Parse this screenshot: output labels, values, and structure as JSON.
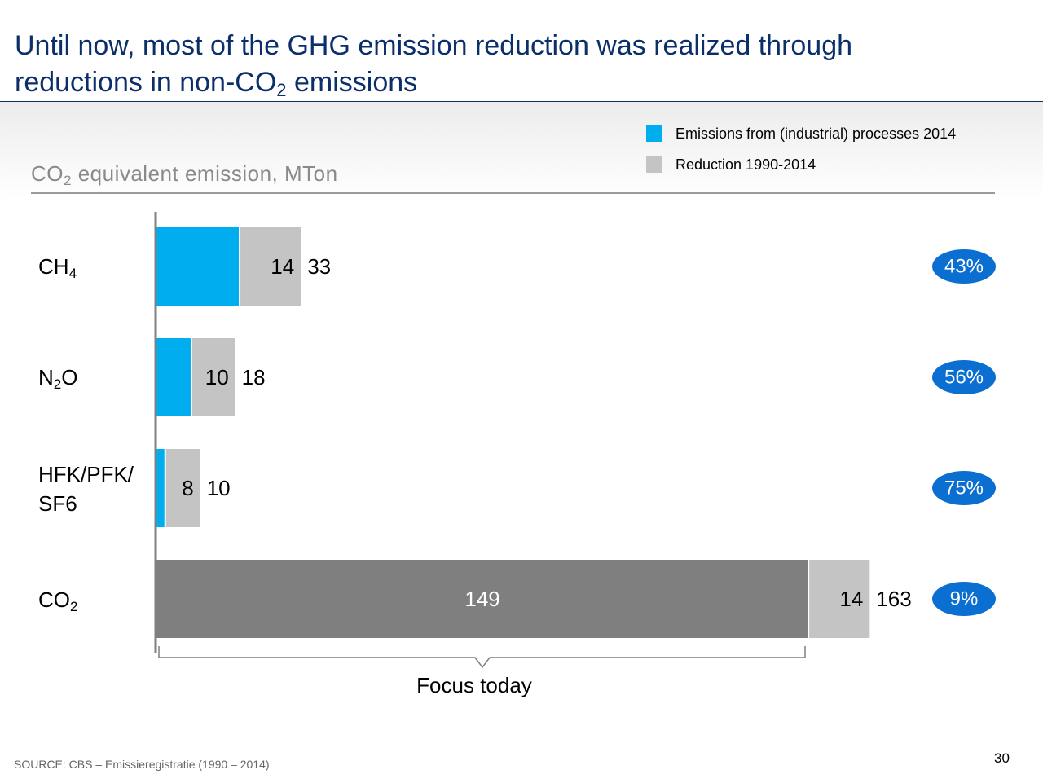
{
  "title": {
    "line1": "Until now, most of the GHG emission reduction was realized through",
    "line2_pre": "reductions in non-CO",
    "line2_sub": "2",
    "line2_post": " emissions"
  },
  "unit_label": {
    "pre": "CO",
    "sub": "2",
    "post": " equivalent emission, MTon"
  },
  "legend": [
    {
      "label": "Emissions from (industrial) processes 2014",
      "color": "#00aeef"
    },
    {
      "label": "Reduction 1990-2014",
      "color": "#c4c4c4"
    }
  ],
  "rows": [
    {
      "label_main": "CH",
      "label_sub": "4",
      "label_post": "",
      "label_line2": ""
    },
    {
      "label_main": "N",
      "label_sub": "2",
      "label_post": "O",
      "label_line2": ""
    },
    {
      "label_main": "HFK/PFK/",
      "label_sub": "",
      "label_post": "",
      "label_line2": "SF6"
    },
    {
      "label_main": "CO",
      "label_sub": "2",
      "label_post": "",
      "label_line2": ""
    }
  ],
  "chart_data": {
    "type": "bar",
    "orientation": "horizontal",
    "stacked": true,
    "categories": [
      "CH4",
      "N2O",
      "HFK/PFK/SF6",
      "CO2"
    ],
    "series": [
      {
        "name": "Emissions from (industrial) processes 2014",
        "values": [
          19,
          8,
          2,
          149
        ],
        "colors": [
          "#00aeef",
          "#00aeef",
          "#00aeef",
          "#7f7f7f"
        ],
        "labels": [
          "",
          "",
          "",
          "149"
        ]
      },
      {
        "name": "Reduction 1990-2014",
        "values": [
          14,
          10,
          8,
          14
        ],
        "colors": [
          "#c4c4c4",
          "#c4c4c4",
          "#c4c4c4",
          "#c4c4c4"
        ],
        "labels": [
          "14",
          "10",
          "8",
          "14"
        ]
      }
    ],
    "totals": [
      "33",
      "18",
      "10",
      "163"
    ],
    "percentages": [
      "43%",
      "56%",
      "75%",
      "9%"
    ],
    "badge_color": "#0a6fd1",
    "xlim": [
      0,
      163
    ],
    "annotation": "Focus today"
  },
  "source": "SOURCE: CBS – Emissieregistratie (1990 – 2014)",
  "page_number": "30"
}
